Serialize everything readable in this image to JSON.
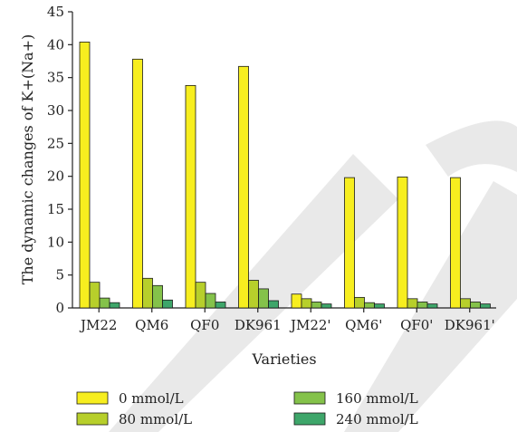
{
  "chart_data": {
    "type": "bar",
    "title": "",
    "xlabel": "Varieties",
    "ylabel": "The dynamic changes of K+(Na+)",
    "ylim": [
      0,
      45
    ],
    "yticks": [
      0,
      5,
      10,
      15,
      20,
      25,
      30,
      35,
      40,
      45
    ],
    "grid": false,
    "legend_position": "bottom",
    "categories": [
      "JM22",
      "QM6",
      "QF0",
      "DK961",
      "JM22'",
      "QM6'",
      "QF0'",
      "DK961'"
    ],
    "series": [
      {
        "name": "0 mmol/L",
        "color": "#f7ee1f",
        "values": [
          40.4,
          37.8,
          33.8,
          36.7,
          2.1,
          19.8,
          19.9,
          19.8
        ]
      },
      {
        "name": "80 mmol/L",
        "color": "#b7cf2b",
        "values": [
          3.9,
          4.5,
          3.9,
          4.2,
          1.4,
          1.6,
          1.4,
          1.4
        ]
      },
      {
        "name": "160 mmol/L",
        "color": "#84c24a",
        "values": [
          1.5,
          3.4,
          2.2,
          2.9,
          0.9,
          0.8,
          0.9,
          0.9
        ]
      },
      {
        "name": "240 mmol/L",
        "color": "#3ea66a",
        "values": [
          0.8,
          1.2,
          0.9,
          1.1,
          0.6,
          0.6,
          0.6,
          0.6
        ]
      }
    ]
  }
}
